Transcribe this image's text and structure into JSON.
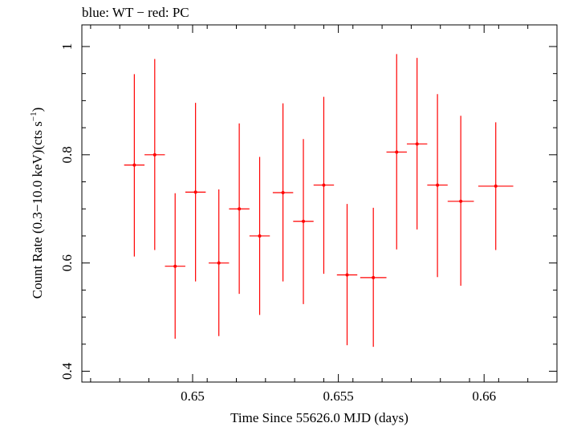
{
  "chart_data": {
    "type": "scatter",
    "title": "blue: WT − red: PC",
    "xlabel": "Time Since 55626.0 MJD (days)",
    "ylabel_main": "Count Rate (0.3−10.0 keV)(cts s",
    "ylabel_sup": "−1",
    "ylabel_close": ")",
    "xlim": [
      0.6462,
      0.6625
    ],
    "ylim": [
      0.38,
      1.04
    ],
    "xticks": [
      {
        "v": 0.65,
        "label": "0.65"
      },
      {
        "v": 0.655,
        "label": "0.655"
      },
      {
        "v": 0.66,
        "label": "0.66"
      }
    ],
    "yticks": [
      {
        "v": 0.4,
        "label": "0.4"
      },
      {
        "v": 0.6,
        "label": "0.6"
      },
      {
        "v": 0.8,
        "label": "0.8"
      },
      {
        "v": 1.0,
        "label": "1"
      }
    ],
    "grid": false,
    "series": [
      {
        "name": "PC",
        "color": "#ff0000",
        "points": [
          {
            "x": 0.648,
            "xerr": 0.00035,
            "y": 0.781,
            "ylo": 0.612,
            "yhi": 0.949
          },
          {
            "x": 0.6487,
            "xerr": 0.00035,
            "y": 0.8,
            "ylo": 0.624,
            "yhi": 0.977
          },
          {
            "x": 0.6494,
            "xerr": 0.00035,
            "y": 0.594,
            "ylo": 0.46,
            "yhi": 0.729
          },
          {
            "x": 0.6501,
            "xerr": 0.00035,
            "y": 0.731,
            "ylo": 0.566,
            "yhi": 0.896
          },
          {
            "x": 0.6509,
            "xerr": 0.00035,
            "y": 0.6,
            "ylo": 0.465,
            "yhi": 0.736
          },
          {
            "x": 0.6516,
            "xerr": 0.00035,
            "y": 0.7,
            "ylo": 0.543,
            "yhi": 0.858
          },
          {
            "x": 0.6523,
            "xerr": 0.00035,
            "y": 0.65,
            "ylo": 0.504,
            "yhi": 0.796
          },
          {
            "x": 0.6531,
            "xerr": 0.00035,
            "y": 0.73,
            "ylo": 0.566,
            "yhi": 0.895
          },
          {
            "x": 0.6538,
            "xerr": 0.00035,
            "y": 0.677,
            "ylo": 0.524,
            "yhi": 0.829
          },
          {
            "x": 0.6545,
            "xerr": 0.00035,
            "y": 0.744,
            "ylo": 0.58,
            "yhi": 0.907
          },
          {
            "x": 0.6553,
            "xerr": 0.00035,
            "y": 0.578,
            "ylo": 0.448,
            "yhi": 0.709
          },
          {
            "x": 0.6562,
            "xerr": 0.00045,
            "y": 0.573,
            "ylo": 0.445,
            "yhi": 0.702
          },
          {
            "x": 0.657,
            "xerr": 0.00035,
            "y": 0.805,
            "ylo": 0.625,
            "yhi": 0.986
          },
          {
            "x": 0.6577,
            "xerr": 0.00035,
            "y": 0.82,
            "ylo": 0.662,
            "yhi": 0.979
          },
          {
            "x": 0.6584,
            "xerr": 0.00035,
            "y": 0.744,
            "ylo": 0.574,
            "yhi": 0.912
          },
          {
            "x": 0.6592,
            "xerr": 0.00045,
            "y": 0.714,
            "ylo": 0.558,
            "yhi": 0.872
          },
          {
            "x": 0.6604,
            "xerr": 0.0006,
            "y": 0.742,
            "ylo": 0.624,
            "yhi": 0.86
          }
        ]
      }
    ]
  }
}
